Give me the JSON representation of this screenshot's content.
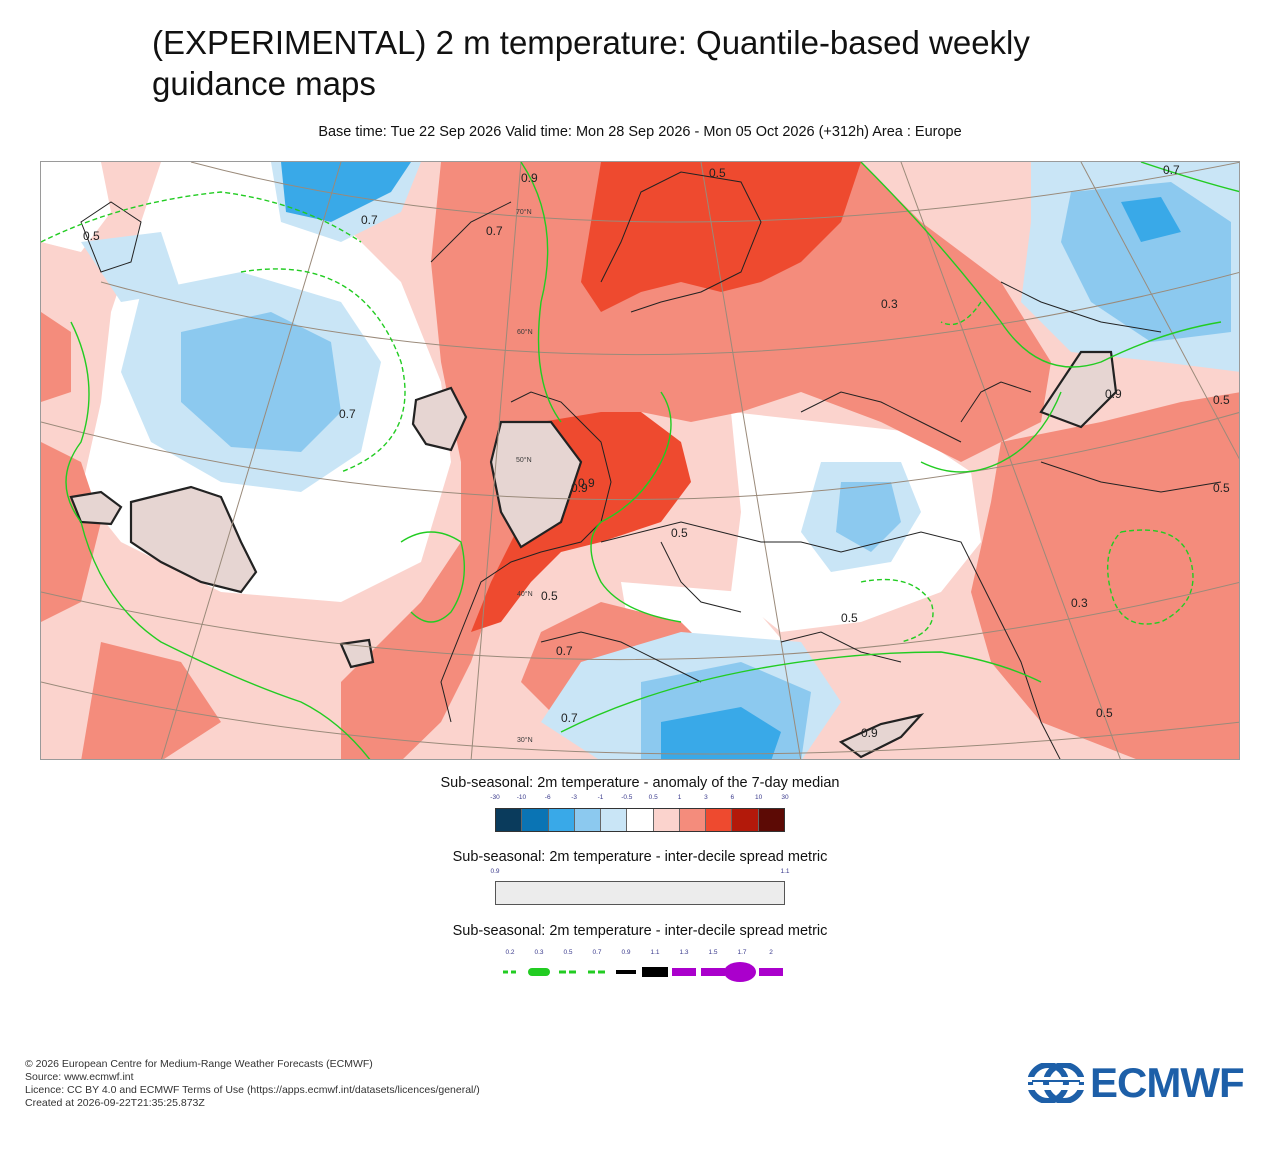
{
  "title": "(EXPERIMENTAL) 2 m temperature: Quantile-based weekly guidance maps",
  "subtitle": "Base time: Tue 22 Sep 2026 Valid time: Mon 28 Sep 2026 - Mon 05 Oct 2026 (+312h) Area : Europe",
  "map": {
    "contour_labels": [
      "0.5",
      "0.7",
      "0.7",
      "0.9",
      "0.5",
      "0.7",
      "0.3",
      "0.7",
      "0.9",
      "0.5",
      "0.9",
      "0.5",
      "0.5",
      "0.5",
      "0.3",
      "0.5",
      "0.7",
      "0.9",
      "0.5",
      "0.7",
      "0.9"
    ],
    "lat_labels": [
      "70°N",
      "60°N",
      "50°N",
      "40°N",
      "30°N"
    ]
  },
  "legends": {
    "anomaly": {
      "title": "Sub-seasonal: 2m temperature - anomaly of the 7-day median",
      "ticks": [
        "-30",
        "-10",
        "-6",
        "-3",
        "-1",
        "-0.5",
        "0.5",
        "1",
        "3",
        "6",
        "10",
        "30"
      ],
      "colors": [
        "#0a3b5c",
        "#0a74b4",
        "#39a9e8",
        "#8cc9ef",
        "#c9e5f6",
        "#ffffff",
        "#fbd3cd",
        "#f48c7c",
        "#ee4a2f",
        "#b3190a",
        "#5c0a05"
      ]
    },
    "spread": {
      "title": "Sub-seasonal: 2m temperature - inter-decile spread metric",
      "ticks": [
        "0.9",
        "1.1"
      ],
      "color": "#ececec"
    },
    "lines": {
      "title": "Sub-seasonal: 2m temperature - inter-decile spread metric",
      "ticks": [
        "0.2",
        "0.3",
        "0.5",
        "0.7",
        "0.9",
        "1.1",
        "1.3",
        "1.5",
        "1.7",
        "2"
      ],
      "colors": [
        "#22cc22",
        "#22cc22",
        "#22cc22",
        "#22cc22",
        "#000000",
        "#000000",
        "#aa00cc",
        "#aa00cc",
        "#aa00cc",
        "#aa00cc"
      ]
    }
  },
  "footer": {
    "line1": "© 2026 European Centre for Medium-Range Weather Forecasts (ECMWF)",
    "line2": "Source: www.ecmwf.int",
    "line3": "Licence: CC BY 4.0 and ECMWF Terms of Use (https://apps.ecmwf.int/datasets/licences/general/)",
    "line4": "Created at 2026-09-22T21:35:25.873Z"
  },
  "logo": {
    "text": "ECMWF",
    "icon": "ecmwf-logo-icon",
    "color": "#1d5fa8"
  }
}
